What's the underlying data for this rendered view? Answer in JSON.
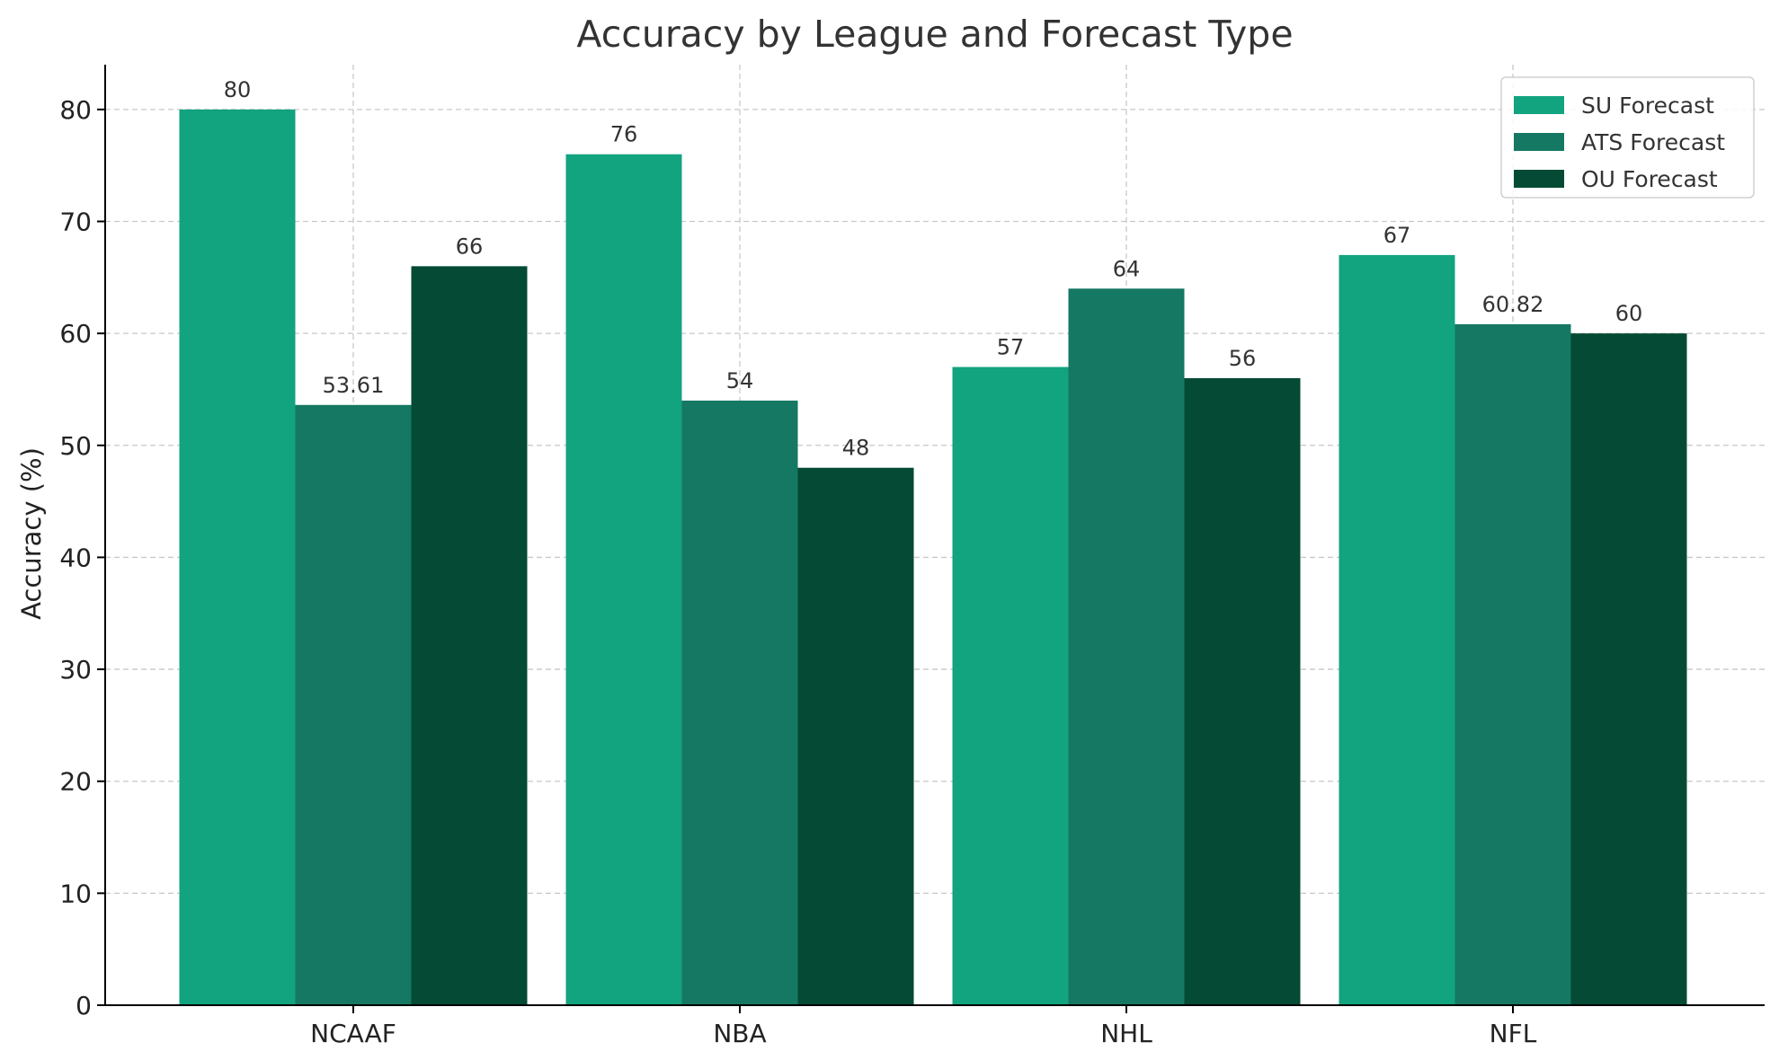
{
  "chart_data": {
    "type": "bar",
    "title": "Accuracy by League and Forecast Type",
    "xlabel": "",
    "ylabel": "Accuracy (%)",
    "categories": [
      "NCAAF",
      "NBA",
      "NHL",
      "NFL"
    ],
    "series": [
      {
        "name": "SU Forecast",
        "color": "#12a37f",
        "values": [
          80,
          76,
          57,
          67
        ],
        "labels": [
          "80",
          "76",
          "57",
          "67"
        ]
      },
      {
        "name": "ATS Forecast",
        "color": "#157862",
        "values": [
          53.61,
          54,
          64,
          60.82
        ],
        "labels": [
          "53.61",
          "54",
          "64",
          "60.82"
        ]
      },
      {
        "name": "OU Forecast",
        "color": "#044a35",
        "values": [
          66,
          48,
          56,
          60
        ],
        "labels": [
          "66",
          "48",
          "56",
          "60"
        ]
      }
    ],
    "ylim": [
      0,
      84
    ],
    "yticks": [
      0,
      10,
      20,
      30,
      40,
      50,
      60,
      70,
      80
    ],
    "grid": true,
    "legend_position": "top-right"
  }
}
